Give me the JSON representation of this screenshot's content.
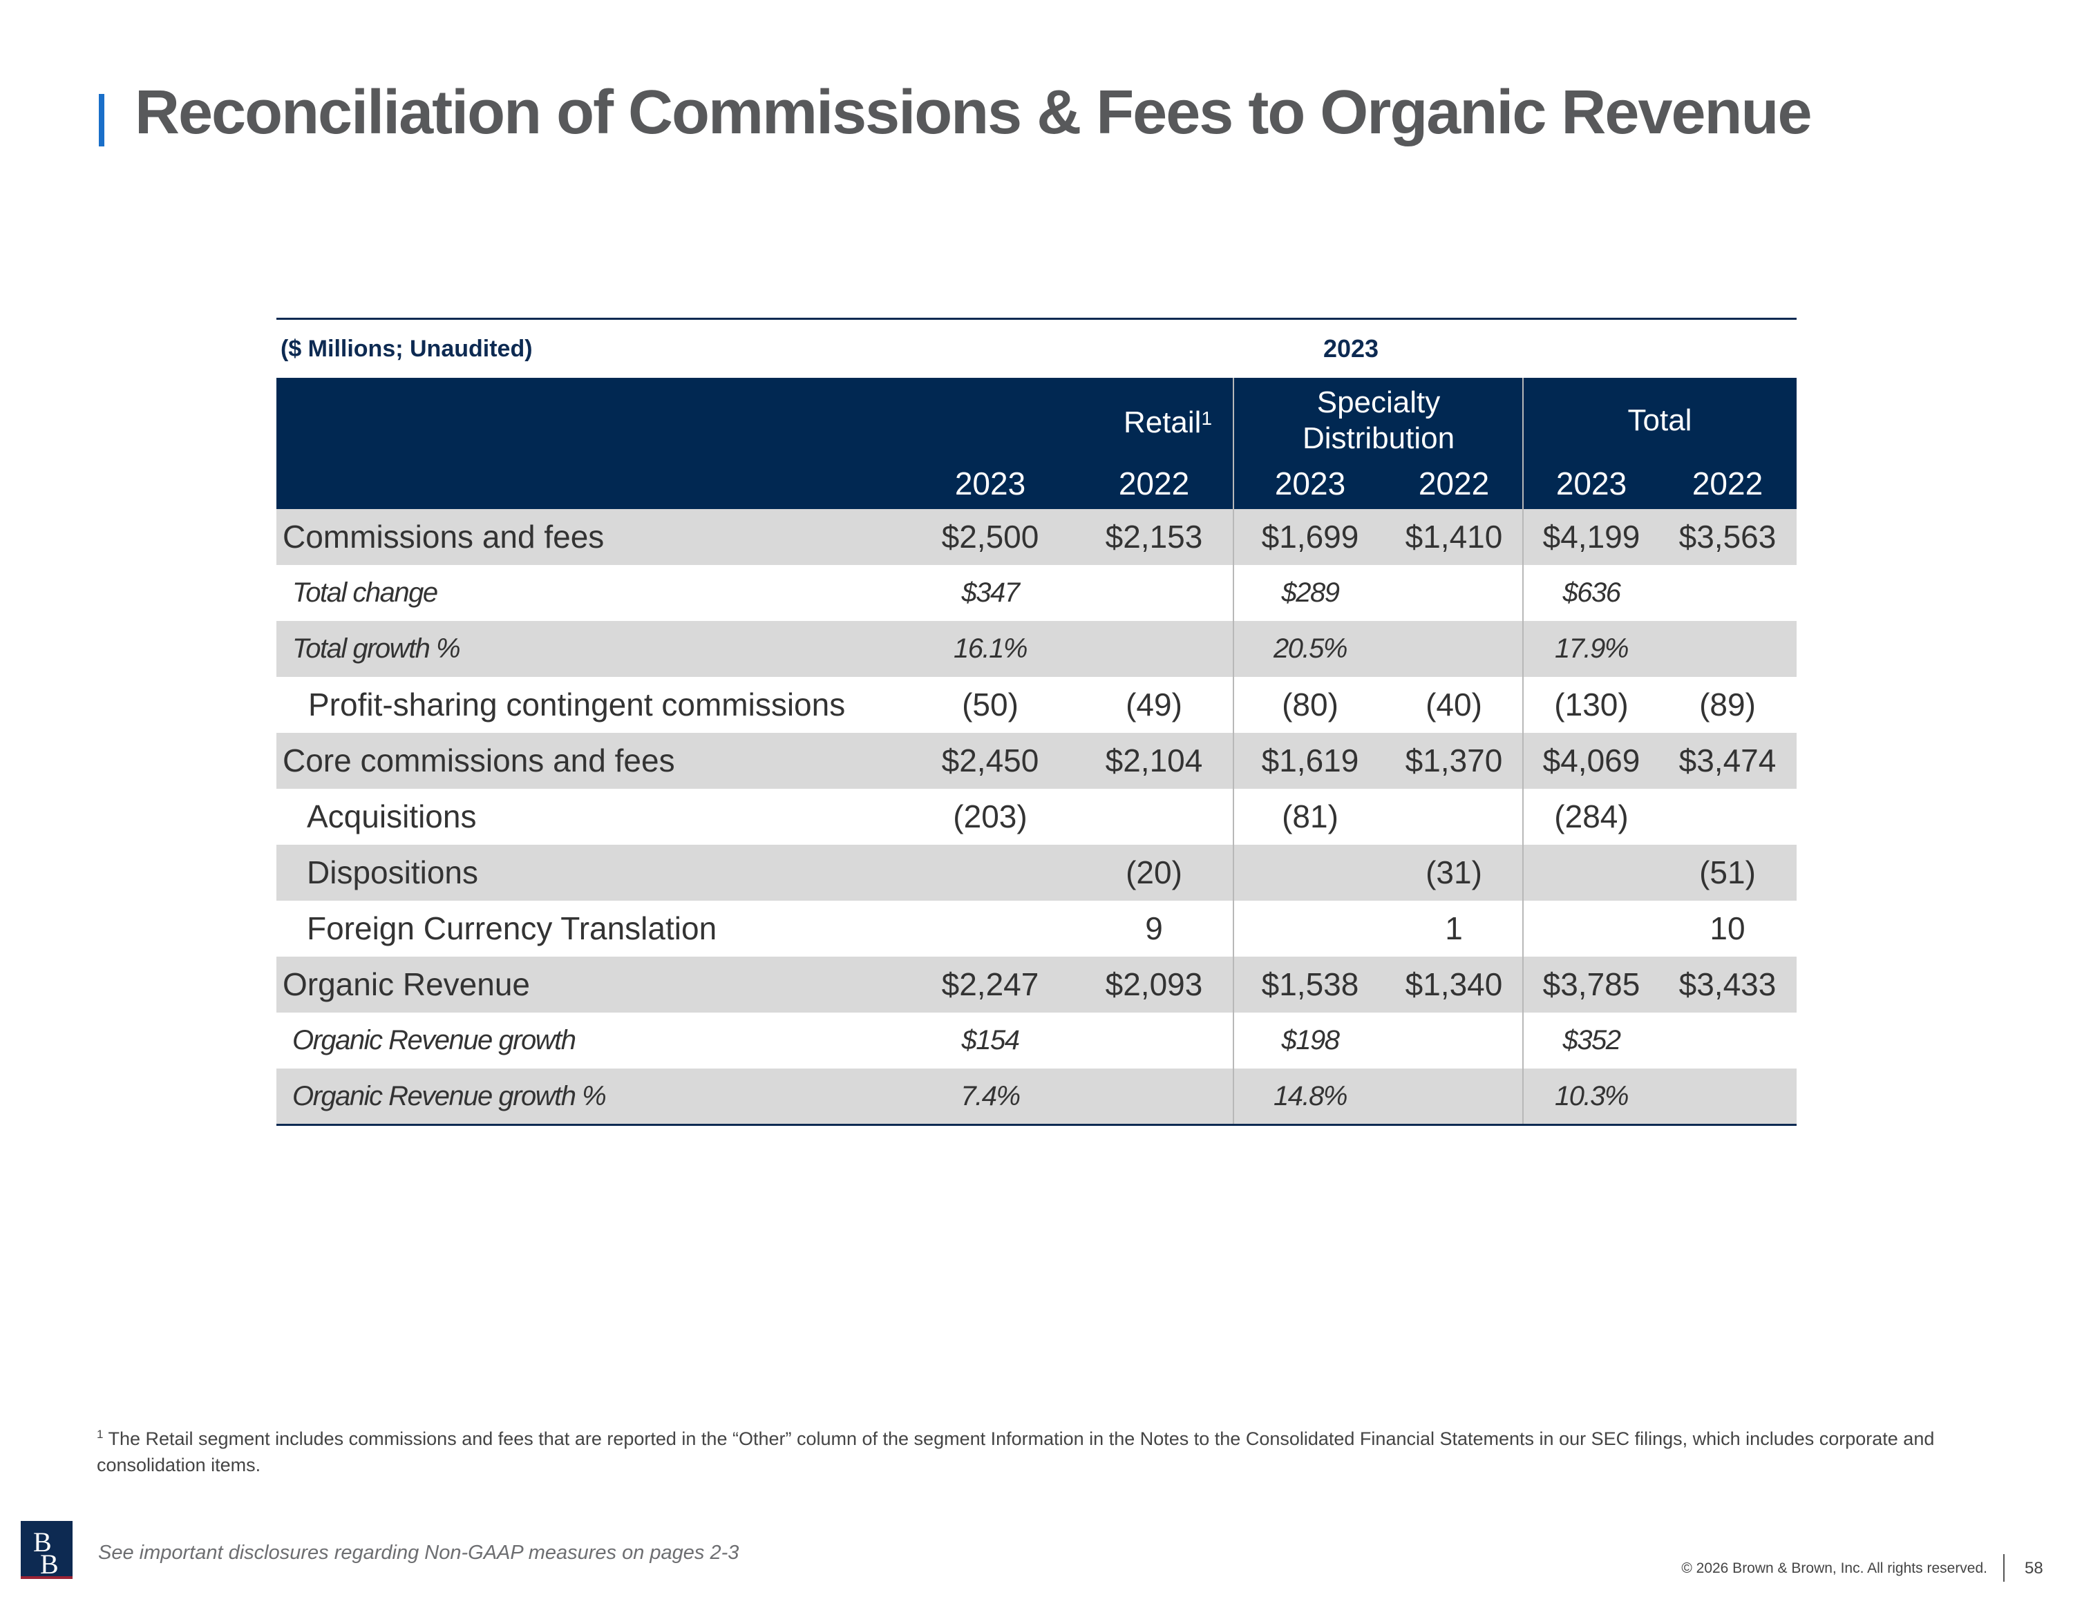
{
  "title": "Reconciliation of Commissions & Fees to Organic Revenue",
  "table": {
    "units": "($ Millions; Unaudited)",
    "year_header": "2023",
    "groups": [
      {
        "label": "Retail",
        "footnote_mark": "1"
      },
      {
        "label": "Specialty",
        "label2": "Distribution"
      },
      {
        "label": "Total"
      }
    ],
    "years": [
      "2023",
      "2022",
      "2023",
      "2022",
      "2023",
      "2022"
    ],
    "rows": [
      {
        "label": "Commissions and fees",
        "values": [
          "$2,500",
          "$2,153",
          "$1,699",
          "$1,410",
          "$4,199",
          "$3,563"
        ]
      },
      {
        "label": "Total change",
        "values": [
          "$347",
          "",
          "$289",
          "",
          "$636",
          ""
        ]
      },
      {
        "label": "Total growth %",
        "values": [
          "16.1%",
          "",
          "20.5%",
          "",
          "17.9%",
          ""
        ]
      },
      {
        "label": "Profit-sharing contingent commissions",
        "values": [
          "(50)",
          "(49)",
          "(80)",
          "(40)",
          "(130)",
          "(89)"
        ]
      },
      {
        "label": "Core commissions and fees",
        "values": [
          "$2,450",
          "$2,104",
          "$1,619",
          "$1,370",
          "$4,069",
          "$3,474"
        ]
      },
      {
        "label": "Acquisitions",
        "values": [
          "(203)",
          "",
          "(81)",
          "",
          "(284)",
          ""
        ]
      },
      {
        "label": "Dispositions",
        "values": [
          "",
          "(20)",
          "",
          "(31)",
          "",
          "(51)"
        ]
      },
      {
        "label": "Foreign Currency Translation",
        "values": [
          "",
          "9",
          "",
          "1",
          "",
          "10"
        ]
      },
      {
        "label": "Organic Revenue",
        "values": [
          "$2,247",
          "$2,093",
          "$1,538",
          "$1,340",
          "$3,785",
          "$3,433"
        ]
      },
      {
        "label": "Organic Revenue growth",
        "values": [
          "$154",
          "",
          "$198",
          "",
          "$352",
          ""
        ]
      },
      {
        "label": "Organic Revenue growth %",
        "values": [
          "7.4%",
          "",
          "14.8%",
          "",
          "10.3%",
          ""
        ]
      }
    ]
  },
  "footnote": {
    "mark": "1",
    "text": "The Retail segment includes commissions and fees that are reported in the “Other” column of the segment Information in the Notes to the Consolidated Financial Statements in our SEC filings, which includes corporate and consolidation items."
  },
  "disclosure": "See important disclosures regarding Non-GAAP measures on pages 2-3",
  "copyright": "© 2026 Brown & Brown, Inc. All rights reserved.",
  "page_number": "58",
  "logo_text": "BB",
  "colors": {
    "header_bg": "#012852",
    "shade": "#d9d9d9",
    "accent": "#1a6fc9",
    "logo_stripe": "#9b2335"
  }
}
